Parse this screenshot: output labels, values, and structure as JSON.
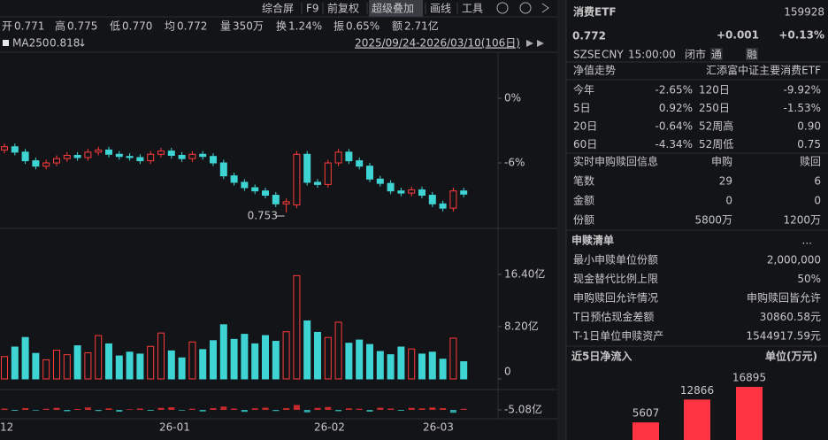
{
  "toolbar": {
    "tabs": [
      "综合屏",
      "F9",
      "前复权",
      "超级叠加",
      "画线",
      "工具"
    ]
  },
  "quote_bar": [
    {
      "label": "开",
      "value": "0.771",
      "color": "#e0e0e0"
    },
    {
      "label": "高",
      "value": "0.775",
      "color": "#ff4242"
    },
    {
      "label": "低",
      "value": "0.770",
      "color": "#33cc66"
    },
    {
      "label": "均",
      "value": "0.772",
      "color": "#ff4242"
    },
    {
      "label": "量",
      "value": "350万",
      "color": "#e0e0e0"
    },
    {
      "label": "换",
      "value": "1.24%",
      "color": "#e0e0e0"
    },
    {
      "label": "振",
      "value": "0.65%",
      "color": "#e0e0e0"
    },
    {
      "label": "额",
      "value": "2.71亿",
      "color": "#e0e0e0"
    }
  ],
  "indicator": {
    "name": "MA250",
    "value": "0.818",
    "date_range": "2025/09/24-2026/03/10(106日)"
  },
  "price_chart": {
    "yticks": [
      {
        "value": 0,
        "label": "0%"
      },
      {
        "value": -6,
        "label": "-6%"
      }
    ],
    "low_marker": "0.753",
    "open": [
      -4.8,
      -4.5,
      -5.0,
      -5.8,
      -6.3,
      -6.0,
      -5.6,
      -5.3,
      -5.5,
      -5.0,
      -4.8,
      -5.2,
      -5.4,
      -5.5,
      -5.8,
      -5.2,
      -4.9,
      -5.3,
      -5.6,
      -5.2,
      -5.4,
      -6.0,
      -7.2,
      -7.8,
      -8.3,
      -8.6,
      -9.0,
      -9.8,
      -9.9,
      -5.2,
      -7.8,
      -8.0,
      -6.0,
      -5.0,
      -5.8,
      -6.3,
      -7.5,
      -7.9,
      -8.6,
      -8.8,
      -8.5,
      -9.0,
      -9.8,
      -10.2,
      -8.6
    ],
    "close": [
      -4.5,
      -5.0,
      -5.8,
      -6.3,
      -6.0,
      -5.6,
      -5.3,
      -5.5,
      -5.0,
      -4.8,
      -5.2,
      -5.4,
      -5.5,
      -5.8,
      -5.2,
      -4.9,
      -5.3,
      -5.6,
      -5.2,
      -5.4,
      -6.0,
      -7.2,
      -7.8,
      -8.3,
      -8.6,
      -9.0,
      -9.8,
      -9.6,
      -5.2,
      -7.8,
      -8.0,
      -6.0,
      -5.0,
      -5.8,
      -6.3,
      -7.5,
      -7.9,
      -8.6,
      -8.8,
      -8.5,
      -9.0,
      -9.8,
      -10.2,
      -8.6,
      -8.9
    ],
    "high": [
      -4.2,
      -4.2,
      -4.7,
      -5.5,
      -5.7,
      -5.3,
      -5.0,
      -5.0,
      -4.7,
      -4.5,
      -4.5,
      -4.9,
      -5.1,
      -5.2,
      -4.9,
      -4.6,
      -4.6,
      -5.0,
      -4.9,
      -4.9,
      -5.1,
      -5.7,
      -6.9,
      -7.5,
      -8.0,
      -8.3,
      -8.7,
      -9.3,
      -4.9,
      -4.9,
      -7.5,
      -5.7,
      -4.7,
      -4.7,
      -5.5,
      -6.0,
      -7.2,
      -7.6,
      -8.3,
      -8.2,
      -8.2,
      -8.7,
      -9.5,
      -8.3,
      -8.3
    ],
    "low": [
      -5.1,
      -5.3,
      -6.1,
      -6.6,
      -6.6,
      -6.3,
      -5.9,
      -5.8,
      -5.8,
      -5.3,
      -5.5,
      -5.7,
      -5.8,
      -6.1,
      -6.1,
      -5.5,
      -5.6,
      -5.9,
      -5.9,
      -5.7,
      -6.3,
      -7.5,
      -8.1,
      -8.6,
      -8.9,
      -9.3,
      -10.1,
      -10.6,
      -10.2,
      -8.1,
      -8.3,
      -8.3,
      -6.3,
      -6.1,
      -6.6,
      -7.8,
      -8.2,
      -8.9,
      -9.1,
      -9.1,
      -9.3,
      -10.1,
      -10.5,
      -10.5,
      -9.2
    ]
  },
  "volume_chart": {
    "yticks": [
      {
        "value": 16.4,
        "label": "16.40亿"
      },
      {
        "value": 8.2,
        "label": "8.20亿"
      },
      0
    ],
    "values": [
      3.5,
      5,
      6.5,
      4,
      3,
      4.5,
      3.8,
      5.2,
      4.1,
      6.8,
      5.5,
      3.6,
      4.2,
      3.9,
      5.1,
      7.2,
      4.4,
      3.3,
      5.8,
      4.6,
      6.0,
      8.5,
      6.2,
      7.0,
      5.5,
      6.8,
      5.9,
      7.4,
      16.2,
      9.1,
      7.3,
      6.5,
      8.9,
      5.6,
      6.1,
      5.4,
      4.3,
      3.8,
      5.0,
      4.7,
      3.9,
      4.2,
      3.1,
      6.4,
      2.7
    ]
  },
  "flow_chart": {
    "ytick": {
      "value": -5.08,
      "label": "-5.08亿"
    },
    "values": [
      0.6,
      -0.4,
      0.8,
      -0.3,
      0.5,
      0.9,
      -0.6,
      0.4,
      1.1,
      -0.5,
      0.7,
      -0.8,
      0.3,
      0.6,
      -0.4,
      0.9,
      1.2,
      -0.3,
      0.5,
      -0.7,
      0.8,
      1.5,
      0.6,
      -0.9,
      0.7,
      1.0,
      -0.5,
      0.8,
      2.2,
      -1.1,
      0.9,
      1.3,
      -0.6,
      0.7,
      0.5,
      -0.8,
      1.0,
      0.6,
      -0.4,
      0.9,
      0.7,
      1.1,
      0.8,
      -1.3,
      0.5
    ]
  },
  "x_axis": [
    "12",
    "26-01",
    "26-02",
    "26-03"
  ],
  "header": {
    "name": "消费ETF",
    "code": "159928",
    "price": "0.772",
    "change": "+0.001",
    "change_pct": "+0.13%",
    "meta": [
      "SZSE",
      "CNY",
      "15:00:00",
      "闭市"
    ],
    "buttons": [
      "通",
      "融"
    ]
  },
  "nav": {
    "title": "净值走势",
    "index_name": "汇添富中证主要消费ETF",
    "rows": [
      [
        "今年",
        "-2.65%",
        "120日",
        "-9.92%"
      ],
      [
        "5日",
        "0.92%",
        "250日",
        "-1.53%"
      ],
      [
        "20日",
        "-0.64%",
        "52周高",
        "0.90"
      ],
      [
        "60日",
        "-4.34%",
        "52周低",
        "0.75"
      ]
    ]
  },
  "subscription": {
    "title": "实时申购赎回信息",
    "columns": [
      "申购",
      "赎回"
    ],
    "rows": [
      [
        "笔数",
        "29",
        "6"
      ],
      [
        "金额",
        "0",
        "0"
      ],
      [
        "份额",
        "5800万",
        "1200万"
      ]
    ]
  },
  "list": {
    "title": "申赎清单",
    "more": "...",
    "rows": [
      [
        "最小申赎单位份额",
        "2,000,000"
      ],
      [
        "现金替代比例上限",
        "50%"
      ],
      [
        "申购赎回允许情况",
        "申购赎回皆允许"
      ],
      [
        "T日预估现金差额",
        "30860.58元"
      ],
      [
        "T-1日单位申赎资产",
        "1544917.59元"
      ]
    ]
  },
  "net_inflow": {
    "title": "近5日净流入",
    "unit": "单位(万元)",
    "values": [
      5607,
      12866,
      16895
    ],
    "color": "#ff3341"
  }
}
